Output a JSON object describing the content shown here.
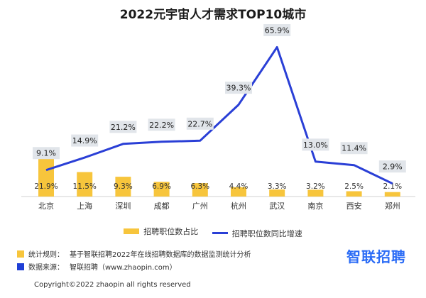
{
  "chart_data": {
    "type": "bar+line",
    "title": "2022元宇宙人才需求TOP10城市",
    "categories": [
      "北京",
      "上海",
      "深圳",
      "成都",
      "广州",
      "杭州",
      "武汉",
      "南京",
      "西安",
      "郑州"
    ],
    "series": [
      {
        "name": "招聘职位数占比",
        "type": "bar",
        "values": [
          21.9,
          11.5,
          9.3,
          6.9,
          6.3,
          4.4,
          3.3,
          3.2,
          2.5,
          2.1
        ],
        "labels": [
          "21.9%",
          "11.5%",
          "9.3%",
          "6.9%",
          "6.3%",
          "4.4%",
          "3.3%",
          "3.2%",
          "2.5%",
          "2.1%"
        ]
      },
      {
        "name": "招聘职位数同比增速",
        "type": "line",
        "values": [
          9.1,
          14.9,
          21.2,
          22.2,
          22.7,
          39.3,
          65.9,
          13.0,
          11.4,
          2.9
        ],
        "labels": [
          "9.1%",
          "14.9%",
          "21.2%",
          "22.2%",
          "22.7%",
          "39.3%",
          "65.9%",
          "13.0%",
          "11.4%",
          "2.9%"
        ]
      }
    ],
    "colors": {
      "bar": "#f7c53c",
      "line": "#2a3fd6",
      "label_box": "#e1e5ea"
    },
    "legend_position": "bottom"
  },
  "footer": {
    "rule_label": "统计规则：",
    "rule_text": "基于智联招聘2022年在线招聘数据库的数据监测统计分析",
    "source_label": "数据来源：",
    "source_text": "智联招聘（www.zhaopin.com）",
    "rule_color": "#f7c53c",
    "source_color": "#1f3fd6"
  },
  "brand": "智联招聘",
  "copyright": "Copyright©2022 zhaopin all rights reserved"
}
